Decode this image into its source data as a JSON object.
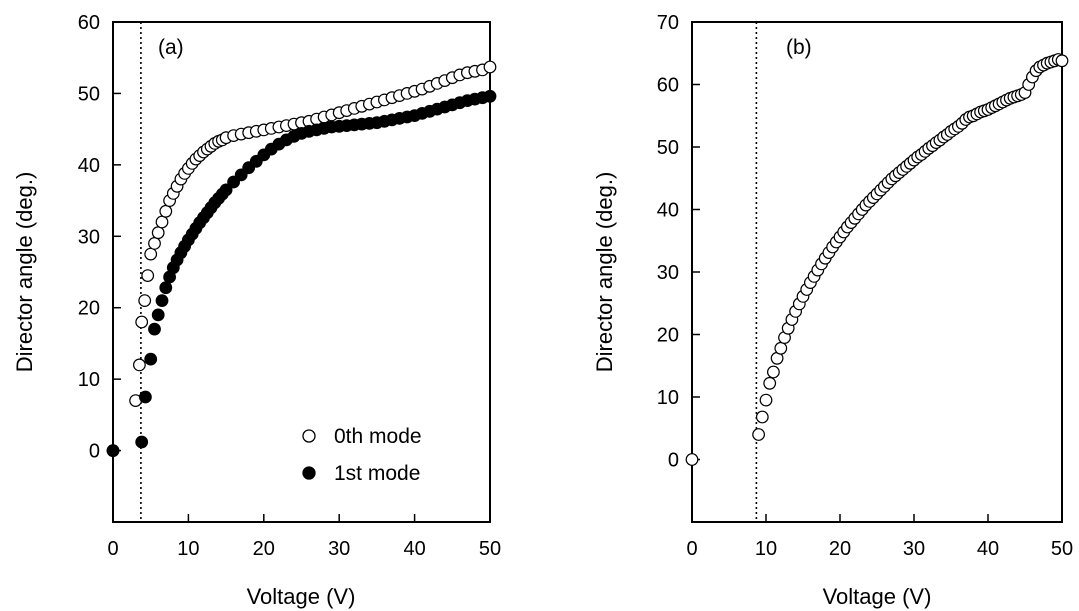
{
  "chart_data": [
    {
      "type": "scatter",
      "panel_label": "(a)",
      "xlabel": "Voltage (V)",
      "ylabel": "Director angle (deg.)",
      "xlim": [
        0,
        50
      ],
      "ylim": [
        -10,
        60
      ],
      "xticks": [
        0,
        10,
        20,
        30,
        40,
        50
      ],
      "yticks": [
        0,
        10,
        20,
        30,
        40,
        50,
        60
      ],
      "threshold_voltage": 3.7,
      "legend_position": "lower-right",
      "series": [
        {
          "name": "0th mode",
          "marker": "open-circle",
          "x": [
            0,
            3,
            3.5,
            3.8,
            4.2,
            4.6,
            5,
            5.5,
            6,
            6.5,
            7,
            7.5,
            8,
            8.5,
            9,
            9.5,
            10,
            10.5,
            11,
            11.5,
            12,
            12.5,
            13,
            13.5,
            14,
            14.5,
            15,
            16,
            17,
            18,
            19,
            20,
            21,
            22,
            23,
            24,
            25,
            26,
            27,
            28,
            29,
            30,
            31,
            32,
            33,
            34,
            35,
            36,
            37,
            38,
            39,
            40,
            41,
            42,
            43,
            44,
            45,
            46,
            47,
            48,
            49,
            50
          ],
          "y": [
            0,
            7,
            12,
            18,
            21,
            24.5,
            27.5,
            29,
            30.5,
            32,
            33.5,
            35,
            36,
            37,
            38,
            38.8,
            39.5,
            40.2,
            40.8,
            41.3,
            41.8,
            42.2,
            42.6,
            43,
            43.3,
            43.5,
            43.8,
            44.1,
            44.3,
            44.5,
            44.7,
            44.9,
            45.1,
            45.3,
            45.5,
            45.7,
            45.9,
            46.1,
            46.4,
            46.7,
            47,
            47.3,
            47.6,
            47.9,
            48.2,
            48.5,
            48.8,
            49.1,
            49.4,
            49.7,
            50,
            50.3,
            50.6,
            51,
            51.4,
            51.8,
            52.2,
            52.6,
            52.9,
            53.1,
            53.3,
            53.7
          ]
        },
        {
          "name": "1st mode",
          "marker": "filled-circle",
          "x": [
            0,
            3.8,
            4.3,
            5,
            5.5,
            6,
            6.5,
            7,
            7.5,
            8,
            8.5,
            9,
            9.5,
            10,
            10.5,
            11,
            11.5,
            12,
            12.5,
            13,
            13.5,
            14,
            14.5,
            15,
            16,
            17,
            18,
            19,
            20,
            21,
            22,
            23,
            24,
            25,
            26,
            27,
            28,
            29,
            30,
            31,
            32,
            33,
            34,
            35,
            36,
            37,
            38,
            39,
            40,
            41,
            42,
            43,
            44,
            45,
            46,
            47,
            48,
            49,
            50
          ],
          "y": [
            0,
            1.2,
            7.5,
            12.8,
            17,
            19,
            21,
            22.8,
            24.3,
            25.6,
            26.7,
            27.7,
            28.6,
            29.5,
            30.3,
            31.1,
            31.9,
            32.6,
            33.3,
            34,
            34.7,
            35.3,
            35.9,
            36.5,
            37.6,
            38.6,
            39.6,
            40.5,
            41.4,
            42.2,
            42.9,
            43.5,
            44,
            44.4,
            44.7,
            44.9,
            45.1,
            45.3,
            45.4,
            45.5,
            45.6,
            45.7,
            45.8,
            45.9,
            46.1,
            46.3,
            46.5,
            46.7,
            46.9,
            47.2,
            47.5,
            47.8,
            48.1,
            48.4,
            48.7,
            49,
            49.2,
            49.4,
            49.6
          ]
        }
      ]
    },
    {
      "type": "scatter",
      "panel_label": "(b)",
      "xlabel": "Voltage (V)",
      "ylabel": "Director angle (deg.)",
      "xlim": [
        0,
        50
      ],
      "ylim": [
        -10,
        70
      ],
      "xticks": [
        0,
        10,
        20,
        30,
        40,
        50
      ],
      "yticks": [
        0,
        10,
        20,
        30,
        40,
        50,
        60,
        70
      ],
      "threshold_voltage": 8.7,
      "series": [
        {
          "marker": "open-circle",
          "x": [
            0,
            9,
            9.5,
            10,
            10.5,
            11,
            11.5,
            12,
            12.5,
            13,
            13.5,
            14,
            14.5,
            15,
            15.5,
            16,
            16.5,
            17,
            17.5,
            18,
            18.5,
            19,
            19.5,
            20,
            20.5,
            21,
            21.5,
            22,
            22.5,
            23,
            23.5,
            24,
            24.5,
            25,
            25.5,
            26,
            26.5,
            27,
            27.5,
            28,
            28.5,
            29,
            29.5,
            30,
            30.5,
            31,
            31.5,
            32,
            32.5,
            33,
            33.5,
            34,
            34.5,
            35,
            35.5,
            36,
            36.5,
            37,
            37.5,
            38,
            38.5,
            39,
            39.5,
            40,
            40.5,
            41,
            41.5,
            42,
            42.5,
            43,
            43.5,
            44,
            44.5,
            45,
            45.5,
            46,
            46.5,
            47,
            47.5,
            48,
            48.5,
            49,
            49.5,
            50
          ],
          "y": [
            0,
            4,
            6.8,
            9.5,
            12.2,
            14,
            16.2,
            17.8,
            19.5,
            21,
            22.4,
            23.7,
            24.9,
            26.1,
            27.2,
            28.3,
            29.3,
            30.3,
            31.3,
            32.2,
            33.1,
            34,
            34.8,
            35.6,
            36.4,
            37.2,
            37.9,
            38.6,
            39.3,
            40,
            40.7,
            41.3,
            41.9,
            42.5,
            43.1,
            43.7,
            44.3,
            44.9,
            45.4,
            45.9,
            46.4,
            46.9,
            47.4,
            47.9,
            48.4,
            48.8,
            49.3,
            49.8,
            50.2,
            50.7,
            51.1,
            51.6,
            52,
            52.5,
            52.9,
            53.3,
            53.8,
            54.4,
            54.8,
            55,
            55.3,
            55.6,
            55.8,
            56,
            56.3,
            56.6,
            56.9,
            57.2,
            57.5,
            57.8,
            58,
            58.2,
            58.4,
            58.7,
            60,
            61.2,
            62.2,
            62.8,
            63.1,
            63.4,
            63.6,
            63.8,
            64,
            63.8
          ]
        }
      ]
    }
  ]
}
